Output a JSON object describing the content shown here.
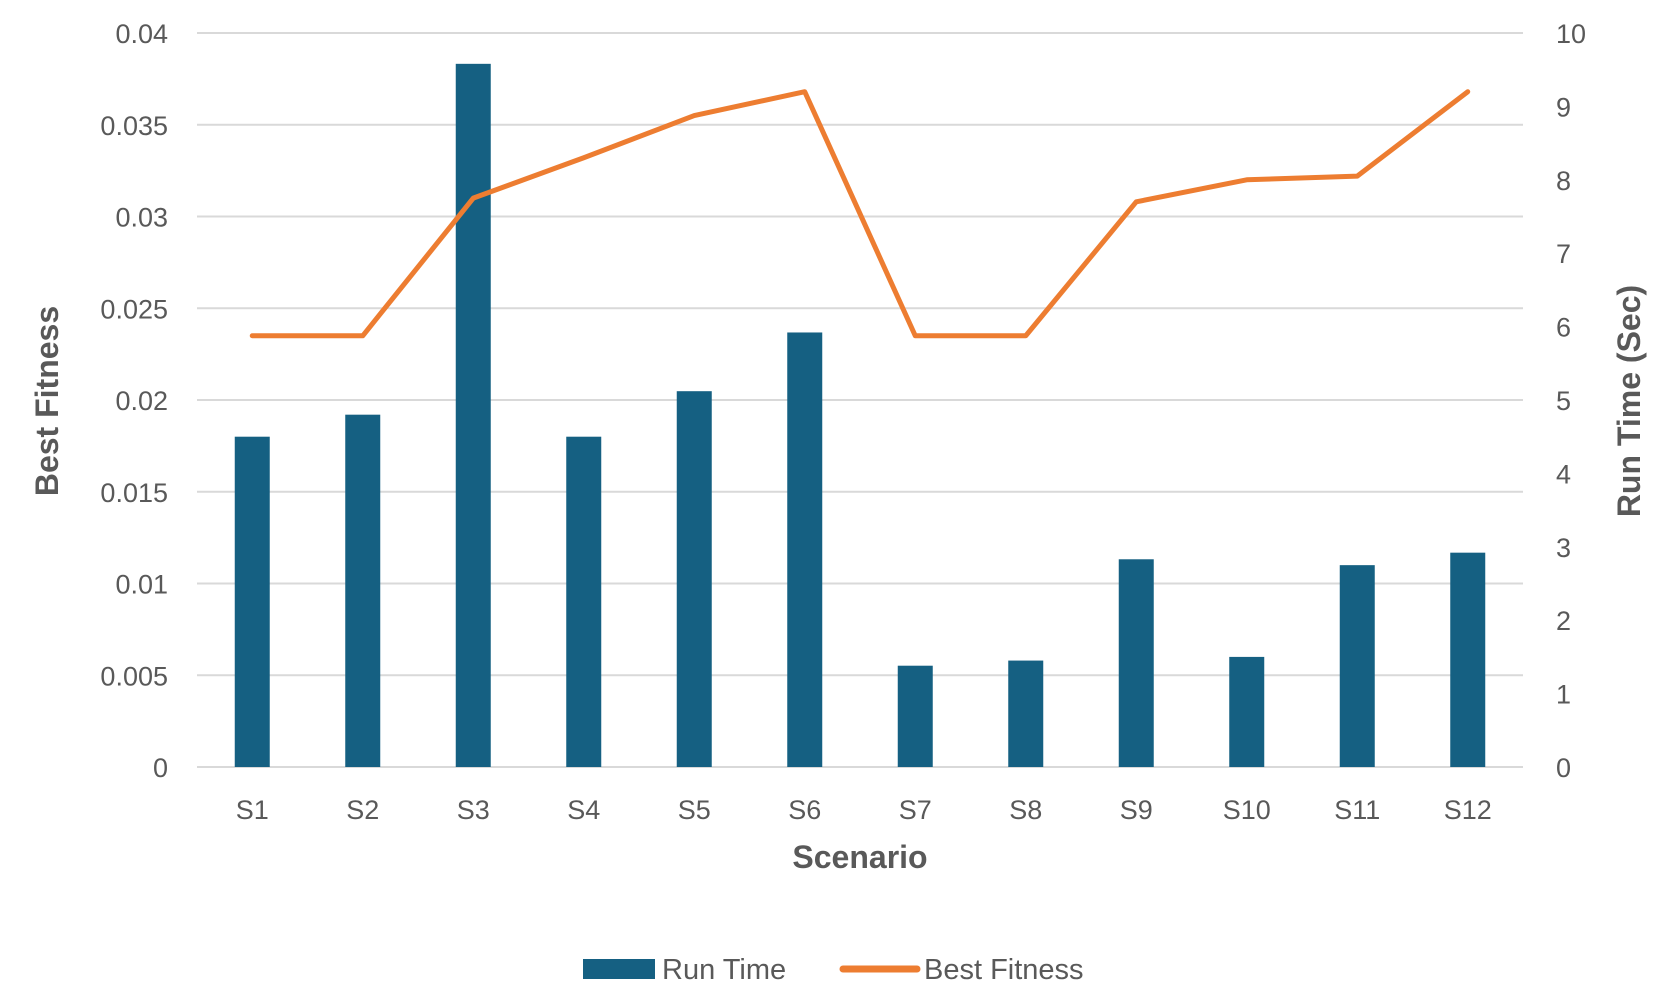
{
  "chart_data": {
    "type": "bar",
    "title": "",
    "xlabel": "Scenario",
    "ylabel_left": "Best Fitness",
    "ylabel_right": "Run Time (Sec)",
    "categories": [
      "S1",
      "S2",
      "S3",
      "S4",
      "S5",
      "S6",
      "S7",
      "S8",
      "S9",
      "S10",
      "S11",
      "S12"
    ],
    "series": [
      {
        "name": "Run Time",
        "type": "bar",
        "axis": "right",
        "color": "#156082",
        "values": [
          4.5,
          4.8,
          9.58,
          4.5,
          5.12,
          5.92,
          1.38,
          1.45,
          2.83,
          1.5,
          2.75,
          2.92
        ]
      },
      {
        "name": "Best Fitness",
        "type": "line",
        "axis": "left",
        "color": "#ED7D31",
        "values": [
          0.0235,
          0.0235,
          0.031,
          0.0332,
          0.0355,
          0.0368,
          0.0235,
          0.0235,
          0.0308,
          0.032,
          0.0322,
          0.0368
        ]
      }
    ],
    "y_left": {
      "range": [
        0,
        0.04
      ],
      "ticks": [
        "0",
        "0.005",
        "0.01",
        "0.015",
        "0.02",
        "0.025",
        "0.03",
        "0.035",
        "0.04"
      ]
    },
    "y_right": {
      "range": [
        0,
        10
      ],
      "ticks": [
        "0",
        "1",
        "2",
        "3",
        "4",
        "5",
        "6",
        "7",
        "8",
        "9",
        "10"
      ]
    },
    "grid": true,
    "legend_position": "bottom"
  }
}
